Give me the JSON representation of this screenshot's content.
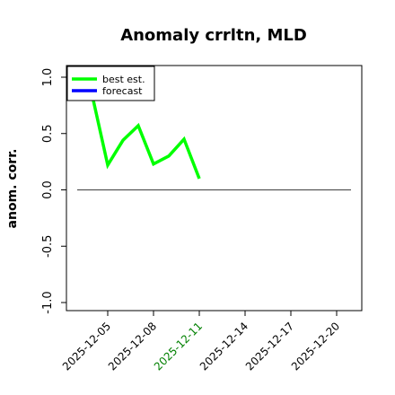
{
  "chart_data": {
    "type": "line",
    "title": "Anomaly crrltn, MLD",
    "ylabel": "anom. corr.",
    "ylim": [
      -1.05,
      1.05
    ],
    "yticks": [
      "-1.0",
      "-0.5",
      "0.0",
      "0.5",
      "1.0"
    ],
    "xticks": [
      "2025-12-05",
      "2025-12-08",
      "2025-12-11",
      "2025-12-14",
      "2025-12-17",
      "2025-12-20"
    ],
    "xtick_colors": [
      "#000000",
      "#000000",
      "#008000",
      "#000000",
      "#000000",
      "#000000"
    ],
    "legend_position": "top-left",
    "grid": false,
    "reference_line": {
      "y": 0.0,
      "color": "#555555"
    },
    "series": [
      {
        "name": "best est.",
        "color": "#00ff00",
        "x": [
          "2025-12-04",
          "2025-12-05",
          "2025-12-06",
          "2025-12-07",
          "2025-12-08",
          "2025-12-09",
          "2025-12-10",
          "2025-12-11"
        ],
        "values": [
          0.83,
          0.22,
          0.44,
          0.57,
          0.23,
          0.3,
          0.45,
          0.1
        ]
      },
      {
        "name": "forecast",
        "color": "#0000ff",
        "x": [],
        "values": []
      }
    ]
  }
}
